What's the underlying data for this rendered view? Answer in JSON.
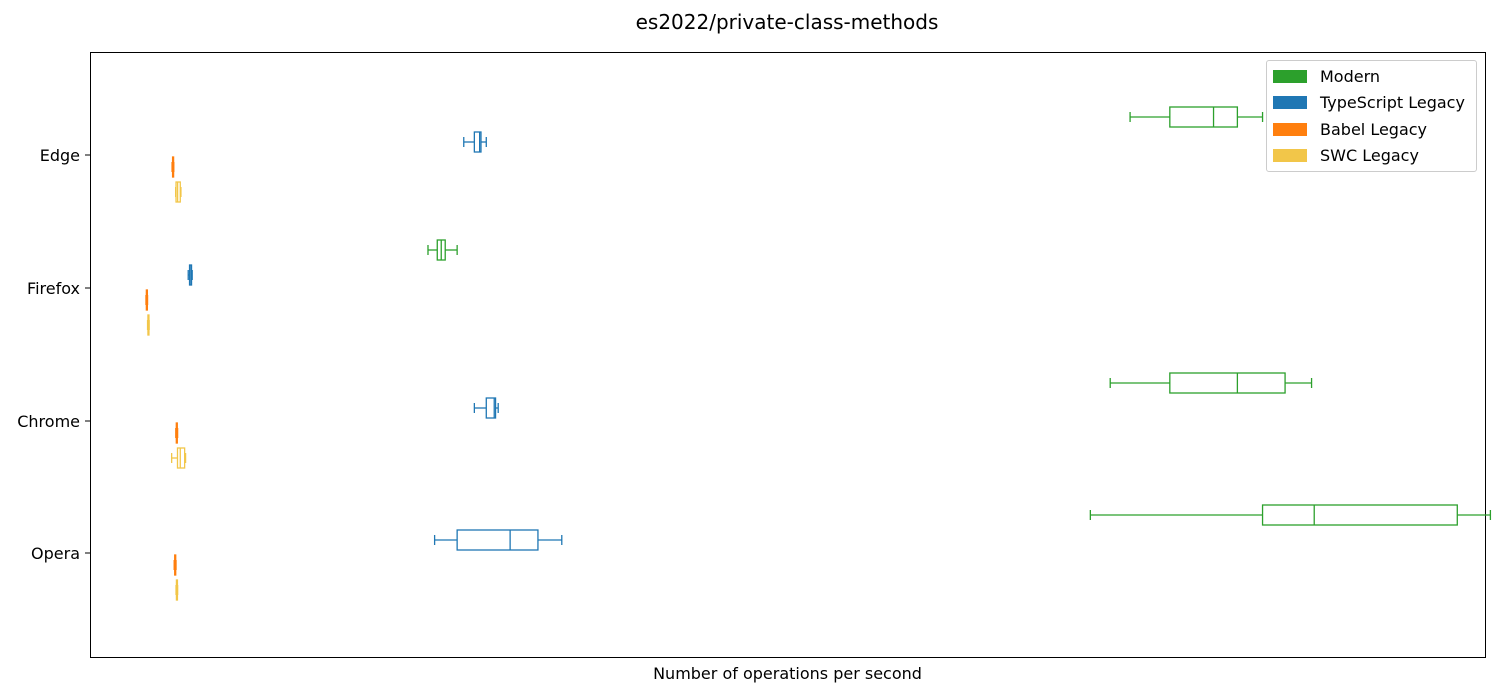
{
  "chart_data": {
    "type": "boxplot",
    "orientation": "horizontal",
    "title": "es2022/private-class-methods",
    "xlabel": "Number of operations per second",
    "ylabel": "",
    "x_ticks_shown": false,
    "grid": false,
    "legend_position": "top-right",
    "xlim": [
      0,
      1000
    ],
    "categories": [
      "Edge",
      "Firefox",
      "Chrome",
      "Opera"
    ],
    "series": [
      {
        "name": "Modern",
        "color": "#2ca02c",
        "boxes": [
          {
            "category": "Edge",
            "whislo": 724,
            "q1": 754,
            "med": 787,
            "q3": 805,
            "whishi": 824
          },
          {
            "category": "Firefox",
            "whislo": 194,
            "q1": 201,
            "med": 204,
            "q3": 207,
            "whishi": 216
          },
          {
            "category": "Chrome",
            "whislo": 709,
            "q1": 754,
            "med": 805,
            "q3": 841,
            "whishi": 861
          },
          {
            "category": "Opera",
            "whislo": 694,
            "q1": 824,
            "med": 863,
            "q3": 971,
            "whishi": 996
          }
        ]
      },
      {
        "name": "TypeScript Legacy",
        "color": "#1f77b4",
        "boxes": [
          {
            "category": "Edge",
            "whislo": 221,
            "q1": 229,
            "med": 233,
            "q3": 234,
            "whishi": 238
          },
          {
            "category": "Firefox",
            "whislo": 13,
            "q1": 14,
            "med": 15,
            "q3": 15.5,
            "whishi": 16
          },
          {
            "category": "Chrome",
            "whislo": 229,
            "q1": 238,
            "med": 244,
            "q3": 245,
            "whishi": 247
          },
          {
            "category": "Opera",
            "whislo": 199,
            "q1": 216,
            "med": 256,
            "q3": 277,
            "whishi": 295
          }
        ]
      },
      {
        "name": "Babel Legacy",
        "color": "#ff7f0e",
        "boxes": [
          {
            "category": "Edge",
            "whislo": 0.8,
            "q1": 1.2,
            "med": 1.5,
            "q3": 1.8,
            "whishi": 2.1
          },
          {
            "category": "Firefox",
            "whislo": -18.9,
            "q1": -18.6,
            "med": -18.3,
            "q3": -18.0,
            "whishi": -17.7
          },
          {
            "category": "Chrome",
            "whislo": 3.6,
            "q1": 4.0,
            "med": 4.3,
            "q3": 4.7,
            "whishi": 5.0
          },
          {
            "category": "Opera",
            "whislo": 2.4,
            "q1": 2.8,
            "med": 3.1,
            "q3": 3.5,
            "whishi": 3.8
          }
        ]
      },
      {
        "name": "SWC Legacy",
        "color": "#f2c649",
        "boxes": [
          {
            "category": "Edge",
            "whislo": 3.5,
            "q1": 3.8,
            "med": 5.0,
            "q3": 7.0,
            "whishi": 7.5
          },
          {
            "category": "Firefox",
            "whislo": -17.7,
            "q1": -17.4,
            "med": -17.1,
            "q3": -16.8,
            "whishi": -16.5
          },
          {
            "category": "Chrome",
            "whislo": 0.5,
            "q1": 4.9,
            "med": 7.0,
            "q3": 10.3,
            "whishi": 11.0
          },
          {
            "category": "Opera",
            "whislo": 3.8,
            "q1": 4.1,
            "med": 4.4,
            "q3": 4.7,
            "whishi": 5.0
          }
        ]
      }
    ]
  }
}
